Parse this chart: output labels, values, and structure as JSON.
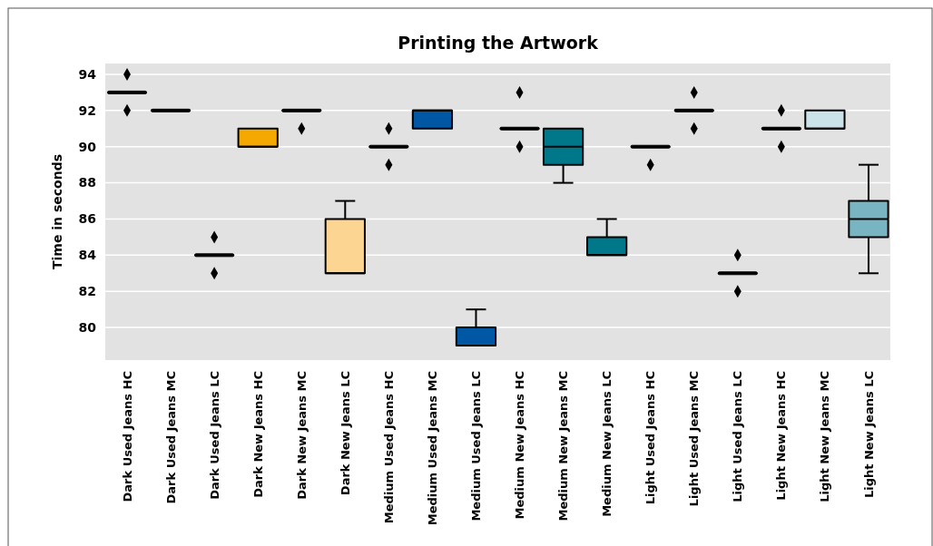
{
  "chart_data": {
    "type": "box",
    "title": "Printing the Artwork",
    "ylabel": "Time in seconds",
    "categories": [
      "Dark Used Jeans HC",
      "Dark Used Jeans MC",
      "Dark Used Jeans LC",
      "Dark New Jeans HC",
      "Dark New Jeans MC",
      "Dark New Jeans LC",
      "Medium Used Jeans HC",
      "Medium Used Jeans MC",
      "Medium Used Jeans LC",
      "Medium New Jeans HC",
      "Medium New Jeans MC",
      "Medium New Jeans LC",
      "Light Used Jeans HC",
      "Light Used Jeans MC",
      "Light Used Jeans LC",
      "Light New Jeans HC",
      "Light New Jeans MC",
      "Light New Jeans LC"
    ],
    "colors": [
      "#000000",
      "#000000",
      "#000000",
      "#f5a800",
      "#000000",
      "#fdd592",
      "#000000",
      "#0057a3",
      "#0057a3",
      "#000000",
      "#00788a",
      "#00788a",
      "#000000",
      "#000000",
      "#000000",
      "#000000",
      "#cbe2e8",
      "#78b4c1"
    ],
    "boxes": [
      {
        "low": 93,
        "q1": 93,
        "median": 93,
        "q3": 93,
        "high": 93,
        "outliers": [
          94,
          92
        ]
      },
      {
        "low": 92,
        "q1": 92,
        "median": 92,
        "q3": 92,
        "high": 92
      },
      {
        "low": 84,
        "q1": 84,
        "median": 84,
        "q3": 84,
        "high": 84,
        "outliers": [
          85,
          83
        ]
      },
      {
        "low": 90,
        "q1": 90,
        "median": 90,
        "q3": 91,
        "high": 91
      },
      {
        "low": 92,
        "q1": 92,
        "median": 92,
        "q3": 92,
        "high": 92,
        "outliers": [
          91
        ]
      },
      {
        "low": 83,
        "q1": 83,
        "median": 83,
        "q3": 86,
        "high": 87
      },
      {
        "low": 90,
        "q1": 90,
        "median": 90,
        "q3": 90,
        "high": 90,
        "outliers": [
          91,
          89
        ]
      },
      {
        "low": 91,
        "q1": 91,
        "median": 92,
        "q3": 92,
        "high": 92
      },
      {
        "low": 79,
        "q1": 79,
        "median": 79,
        "q3": 80,
        "high": 81
      },
      {
        "low": 91,
        "q1": 91,
        "median": 91,
        "q3": 91,
        "high": 91,
        "outliers": [
          93,
          90
        ]
      },
      {
        "low": 88,
        "q1": 89,
        "median": 90,
        "q3": 91,
        "high": 91
      },
      {
        "low": 84,
        "q1": 84,
        "median": 84,
        "q3": 85,
        "high": 86
      },
      {
        "low": 90,
        "q1": 90,
        "median": 90,
        "q3": 90,
        "high": 90,
        "outliers": [
          89
        ]
      },
      {
        "low": 92,
        "q1": 92,
        "median": 92,
        "q3": 92,
        "high": 92,
        "outliers": [
          93,
          91
        ]
      },
      {
        "low": 83,
        "q1": 83,
        "median": 83,
        "q3": 83,
        "high": 83,
        "outliers": [
          84,
          82
        ]
      },
      {
        "low": 91,
        "q1": 91,
        "median": 91,
        "q3": 91,
        "high": 91,
        "outliers": [
          92,
          90
        ]
      },
      {
        "low": 91,
        "q1": 91,
        "median": 91,
        "q3": 92,
        "high": 92
      },
      {
        "low": 83,
        "q1": 85,
        "median": 86,
        "q3": 87,
        "high": 89
      }
    ],
    "ylim": [
      78.2,
      94.6
    ],
    "yticks": [
      80,
      82,
      84,
      86,
      88,
      90,
      92,
      94
    ],
    "grid": "y",
    "marker": "diamond"
  }
}
